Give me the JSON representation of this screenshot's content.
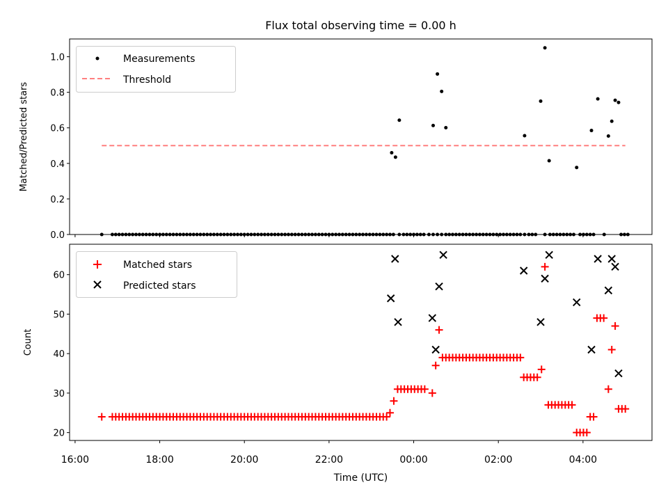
{
  "chart_data": [
    {
      "type": "scatter",
      "title": "Flux total observing time = 0.00 h",
      "xlabel": "",
      "ylabel": "Matched/Predicted stars",
      "xlim": [
        15.87,
        29.63
      ],
      "ylim": [
        0.0,
        1.1
      ],
      "yticks": [
        0.0,
        0.2,
        0.4,
        0.6,
        0.8,
        1.0
      ],
      "ytick_labels": [
        "0.0",
        "0.2",
        "0.4",
        "0.6",
        "0.8",
        "1.0"
      ],
      "legend": [
        "Measurements",
        "Threshold"
      ],
      "legend_position": "top-left",
      "series": [
        {
          "name": "Measurements",
          "zeros_x": [
            16.63,
            16.88,
            16.96,
            17.04,
            17.12,
            17.2,
            17.28,
            17.36,
            17.44,
            17.52,
            17.6,
            17.68,
            17.76,
            17.84,
            17.92,
            18.0,
            18.08,
            18.16,
            18.24,
            18.32,
            18.4,
            18.48,
            18.56,
            18.64,
            18.72,
            18.8,
            18.88,
            18.96,
            19.04,
            19.12,
            19.2,
            19.28,
            19.36,
            19.44,
            19.52,
            19.6,
            19.68,
            19.76,
            19.84,
            19.92,
            20.0,
            20.08,
            20.16,
            20.24,
            20.32,
            20.4,
            20.48,
            20.56,
            20.64,
            20.72,
            20.8,
            20.88,
            20.96,
            21.04,
            21.12,
            21.2,
            21.28,
            21.36,
            21.44,
            21.52,
            21.6,
            21.68,
            21.76,
            21.84,
            21.92,
            22.0,
            22.08,
            22.16,
            22.24,
            22.32,
            22.4,
            22.48,
            22.56,
            22.64,
            22.72,
            22.8,
            22.88,
            22.96,
            23.04,
            23.12,
            23.2,
            23.28,
            23.36,
            23.44,
            23.52,
            23.66,
            23.76,
            23.84,
            23.92,
            24.0,
            24.08,
            24.16,
            24.24,
            24.36,
            24.46,
            24.56,
            24.66,
            24.76,
            24.84,
            24.92,
            25.0,
            25.08,
            25.16,
            25.24,
            25.32,
            25.4,
            25.48,
            25.56,
            25.64,
            25.72,
            25.8,
            25.88,
            25.96,
            26.04,
            26.12,
            26.2,
            26.28,
            26.36,
            26.44,
            26.52,
            26.62,
            26.72,
            26.8,
            26.88,
            27.1,
            27.22,
            27.3,
            27.38,
            27.46,
            27.54,
            27.62,
            27.7,
            27.78,
            27.93,
            28.01,
            28.09,
            28.17,
            28.25,
            28.5,
            28.9,
            28.98,
            29.06
          ],
          "x": [
            23.48,
            23.57,
            23.66,
            24.46,
            24.56,
            24.66,
            24.76,
            26.62,
            27.0,
            27.1,
            27.2,
            27.85,
            28.2,
            28.35,
            28.6,
            28.68,
            28.76,
            28.84
          ],
          "values": [
            0.46,
            0.435,
            0.643,
            0.613,
            0.903,
            0.805,
            0.601,
            0.556,
            0.75,
            1.05,
            0.415,
            0.377,
            0.585,
            0.763,
            0.554,
            0.637,
            0.755,
            0.743
          ]
        },
        {
          "name": "Threshold",
          "x": [
            16.63,
            29.0
          ],
          "values": [
            0.5,
            0.5
          ]
        }
      ]
    },
    {
      "type": "scatter",
      "title": "",
      "xlabel": "Time (UTC)",
      "ylabel": "Count",
      "xlim": [
        15.87,
        29.63
      ],
      "ylim": [
        18.0,
        67.7
      ],
      "yticks": [
        20,
        30,
        40,
        50,
        60
      ],
      "ytick_labels": [
        "20",
        "30",
        "40",
        "50",
        "60"
      ],
      "xticks": [
        16,
        18,
        20,
        22,
        24,
        26,
        28
      ],
      "xtick_labels": [
        "16:00",
        "18:00",
        "20:00",
        "22:00",
        "00:00",
        "02:00",
        "04:00"
      ],
      "legend": [
        "Matched stars",
        "Predicted stars"
      ],
      "legend_position": "top-left",
      "series": [
        {
          "name": "Matched stars",
          "runs": [
            {
              "x0": 16.63,
              "x1": 16.63,
              "step": 0.1,
              "value": 24
            },
            {
              "x0": 16.88,
              "x1": 23.36,
              "step": 0.08,
              "value": 24
            },
            {
              "x0": 23.44,
              "x1": 23.44,
              "step": 0.1,
              "value": 25
            },
            {
              "x0": 23.53,
              "x1": 23.53,
              "step": 0.1,
              "value": 28
            },
            {
              "x0": 23.62,
              "x1": 24.26,
              "step": 0.08,
              "value": 31
            },
            {
              "x0": 24.44,
              "x1": 24.44,
              "step": 0.1,
              "value": 30
            },
            {
              "x0": 24.52,
              "x1": 24.52,
              "step": 0.1,
              "value": 37
            },
            {
              "x0": 24.6,
              "x1": 24.6,
              "step": 0.1,
              "value": 46
            },
            {
              "x0": 24.68,
              "x1": 26.52,
              "step": 0.08,
              "value": 39
            },
            {
              "x0": 26.6,
              "x1": 26.92,
              "step": 0.08,
              "value": 34
            },
            {
              "x0": 27.02,
              "x1": 27.02,
              "step": 0.1,
              "value": 36
            },
            {
              "x0": 27.1,
              "x1": 27.1,
              "step": 0.1,
              "value": 62
            },
            {
              "x0": 27.18,
              "x1": 27.74,
              "step": 0.08,
              "value": 27
            },
            {
              "x0": 27.85,
              "x1": 28.09,
              "step": 0.08,
              "value": 20
            },
            {
              "x0": 28.17,
              "x1": 28.25,
              "step": 0.08,
              "value": 24
            },
            {
              "x0": 28.33,
              "x1": 28.49,
              "step": 0.08,
              "value": 49
            },
            {
              "x0": 28.6,
              "x1": 28.6,
              "step": 0.1,
              "value": 31
            },
            {
              "x0": 28.68,
              "x1": 28.68,
              "step": 0.1,
              "value": 41
            },
            {
              "x0": 28.76,
              "x1": 28.76,
              "step": 0.1,
              "value": 47
            },
            {
              "x0": 28.84,
              "x1": 29.0,
              "step": 0.08,
              "value": 26
            }
          ]
        },
        {
          "name": "Predicted stars",
          "x": [
            23.46,
            23.56,
            23.63,
            24.44,
            24.52,
            24.6,
            24.7,
            26.6,
            27.0,
            27.1,
            27.2,
            27.85,
            28.2,
            28.35,
            28.6,
            28.68,
            28.76,
            28.84
          ],
          "values": [
            54,
            64,
            48,
            49,
            41,
            57,
            65,
            61,
            48,
            59,
            65,
            53,
            41,
            64,
            56,
            64,
            62,
            35
          ]
        }
      ]
    }
  ],
  "colors": {
    "measurements": "#000000",
    "threshold": "#ff7f7f",
    "matched": "#ff0000",
    "predicted": "#000000"
  }
}
